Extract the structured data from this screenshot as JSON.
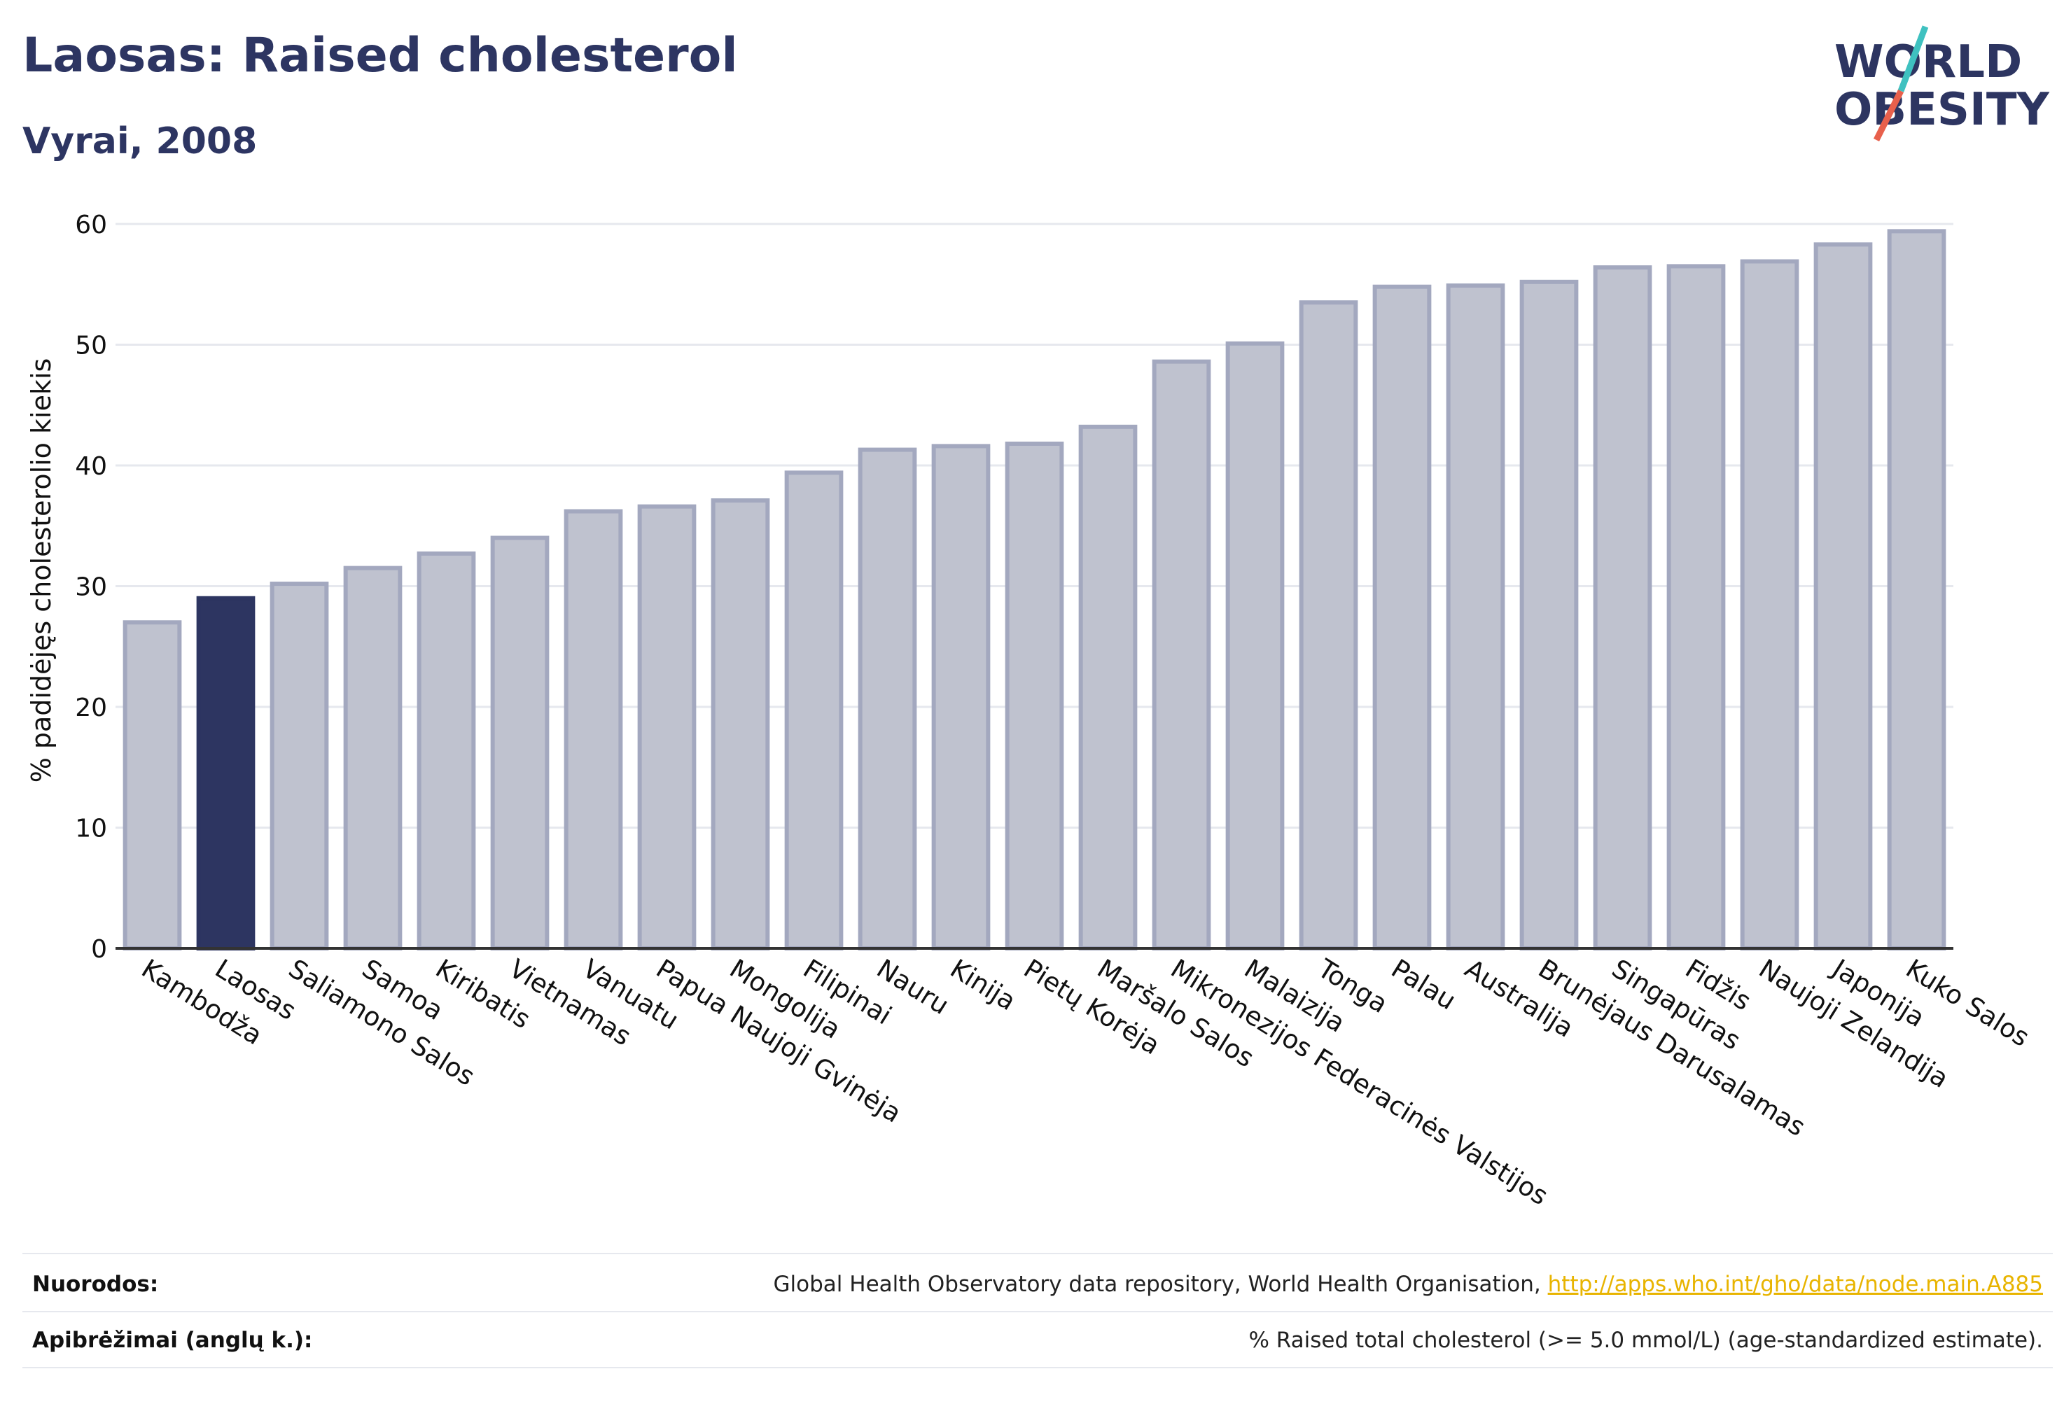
{
  "header": {
    "title": "Laosas: Raised cholesterol",
    "subtitle": "Vyrai, 2008"
  },
  "logo": {
    "line1": "WORLD",
    "line2": "OBESITY",
    "colors": {
      "text": "#2d3561",
      "slash_teal": "#3fc1c0",
      "slash_red": "#e8604c"
    }
  },
  "chart_data": {
    "type": "bar",
    "ylabel": "% padidėjęs cholesterolio kiekis",
    "xlabel": "",
    "ylim": [
      0,
      60
    ],
    "yticks": [
      0,
      10,
      20,
      30,
      40,
      50,
      60
    ],
    "grid": true,
    "highlight": "Laosas",
    "colors": {
      "bar": "#bfc2cf",
      "bar_border": "#a3a8bf",
      "highlight": "#2d3561",
      "grid": "#e6e8ee",
      "axis": "#333333"
    },
    "categories": [
      "Kambodža",
      "Laosas",
      "Saliamono Salos",
      "Samoa",
      "Kiribatis",
      "Vietnamas",
      "Vanuatu",
      "Papua Naujoji Gvinėja",
      "Mongolija",
      "Filipinai",
      "Nauru",
      "Kinija",
      "Pietų Korėja",
      "Maršalo Salos",
      "Mikronezijos Federacinės Valstijos",
      "Malaizija",
      "Tonga",
      "Palau",
      "Australija",
      "Brunėjaus Darusalamas",
      "Singapūras",
      "Fidžis",
      "Naujoji Zelandija",
      "Japonija",
      "Kuko Salos"
    ],
    "values": [
      27.0,
      29.0,
      30.2,
      31.5,
      32.7,
      34.0,
      36.2,
      36.6,
      37.1,
      39.4,
      41.3,
      41.6,
      41.8,
      43.2,
      48.6,
      50.1,
      53.5,
      54.8,
      54.9,
      55.2,
      56.4,
      56.5,
      56.9,
      58.3,
      59.4
    ]
  },
  "footer": {
    "references_label": "Nuorodos:",
    "references_text": "Global Health Observatory data repository, World Health Organisation, ",
    "references_link": "http://apps.who.int/gho/data/node.main.A885",
    "definitions_label": "Apibrėžimai (anglų k.):",
    "definitions_text": "% Raised total cholesterol (>= 5.0 mmol/L) (age-standardized estimate)."
  }
}
